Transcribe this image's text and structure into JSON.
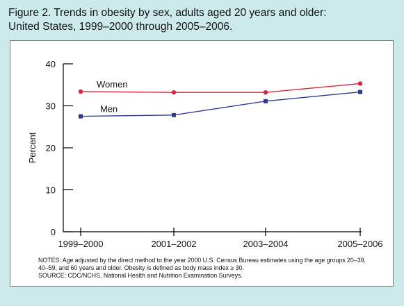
{
  "figure": {
    "title_line1": "Figure 2. Trends in obesity by sex, adults aged 20 years and older:",
    "title_line2": "United States, 1999–2000 through 2005–2006."
  },
  "notes": {
    "line1": "NOTES: Age adjusted by the direct method to the year  2000 U.S. Census Bureau estimates using the age groups 20–39,",
    "line2": "40–59, and 60 years and older. Obesity is defined as body mass index ≥ 30.",
    "line3": "SOURCE: CDC/NCHS, National Health and Nutrition Examination Surveys."
  },
  "chart_data": {
    "type": "line",
    "title": "Trends in obesity by sex, adults aged 20 years and older: United States, 1999–2000 through 2005–2006.",
    "xlabel": "",
    "ylabel": "Percent",
    "ylim": [
      0,
      40
    ],
    "yticks": [
      0,
      10,
      20,
      30,
      40
    ],
    "grid": false,
    "legend": "inline labels",
    "categories": [
      "1999–2000",
      "2001–2002",
      "2003–2004",
      "2005–2006"
    ],
    "series": [
      {
        "name": "Women",
        "values": [
          33.4,
          33.2,
          33.2,
          35.3
        ],
        "color": "#d7263d",
        "marker": "circle"
      },
      {
        "name": "Men",
        "values": [
          27.5,
          27.8,
          31.1,
          33.3
        ],
        "color": "#2e3a8c",
        "marker": "square"
      }
    ]
  }
}
